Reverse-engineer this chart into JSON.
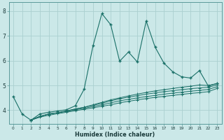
{
  "background_color": "#cbe8e8",
  "line_color": "#1a7068",
  "grid_color": "#aad0d0",
  "xlabel": "Humidex (Indice chaleur)",
  "xticks": [
    0,
    1,
    2,
    3,
    4,
    5,
    6,
    7,
    8,
    9,
    10,
    11,
    12,
    13,
    14,
    15,
    16,
    17,
    18,
    19,
    20,
    21,
    22,
    23
  ],
  "yticks": [
    4,
    5,
    6,
    7,
    8
  ],
  "ylim": [
    3.45,
    8.35
  ],
  "xlim": [
    -0.5,
    23.5
  ],
  "main_x": [
    0,
    1,
    2,
    3,
    4,
    5,
    6,
    7,
    8,
    9,
    10,
    11,
    12,
    13,
    14,
    15,
    16,
    17,
    18,
    19,
    20,
    21,
    22,
    23
  ],
  "main_y": [
    4.55,
    3.85,
    3.6,
    3.85,
    3.92,
    3.97,
    4.02,
    4.18,
    4.85,
    6.6,
    7.9,
    7.45,
    5.98,
    6.35,
    5.95,
    7.6,
    6.55,
    5.9,
    5.55,
    5.35,
    5.3,
    5.6,
    4.98,
    5.08
  ],
  "fan_lines": [
    {
      "x": [
        2,
        3,
        4,
        5,
        6,
        7,
        8,
        9,
        10,
        11,
        12,
        13,
        14,
        15,
        16,
        17,
        18,
        19,
        20,
        21,
        22,
        23
      ],
      "y": [
        3.6,
        3.75,
        3.85,
        3.9,
        3.97,
        4.05,
        4.12,
        4.22,
        4.32,
        4.42,
        4.5,
        4.58,
        4.65,
        4.72,
        4.78,
        4.83,
        4.88,
        4.93,
        4.97,
        5.02,
        5.0,
        5.08
      ]
    },
    {
      "x": [
        2,
        3,
        4,
        5,
        6,
        7,
        8,
        9,
        10,
        11,
        12,
        13,
        14,
        15,
        16,
        17,
        18,
        19,
        20,
        21,
        22,
        23
      ],
      "y": [
        3.6,
        3.75,
        3.85,
        3.9,
        3.97,
        4.05,
        4.12,
        4.2,
        4.28,
        4.38,
        4.46,
        4.53,
        4.59,
        4.65,
        4.7,
        4.75,
        4.79,
        4.83,
        4.87,
        4.9,
        4.93,
        5.02
      ]
    },
    {
      "x": [
        2,
        3,
        4,
        5,
        6,
        7,
        8,
        9,
        10,
        11,
        12,
        13,
        14,
        15,
        16,
        17,
        18,
        19,
        20,
        21,
        22,
        23
      ],
      "y": [
        3.6,
        3.75,
        3.85,
        3.9,
        3.95,
        4.02,
        4.08,
        4.15,
        4.22,
        4.3,
        4.38,
        4.44,
        4.5,
        4.55,
        4.6,
        4.65,
        4.69,
        4.73,
        4.77,
        4.8,
        4.84,
        4.95
      ]
    },
    {
      "x": [
        2,
        3,
        4,
        5,
        6,
        7,
        8,
        9,
        10,
        11,
        12,
        13,
        14,
        15,
        16,
        17,
        18,
        19,
        20,
        21,
        22,
        23
      ],
      "y": [
        3.6,
        3.72,
        3.8,
        3.86,
        3.92,
        3.98,
        4.04,
        4.1,
        4.16,
        4.22,
        4.3,
        4.36,
        4.42,
        4.47,
        4.52,
        4.56,
        4.6,
        4.64,
        4.68,
        4.71,
        4.75,
        4.88
      ]
    }
  ]
}
